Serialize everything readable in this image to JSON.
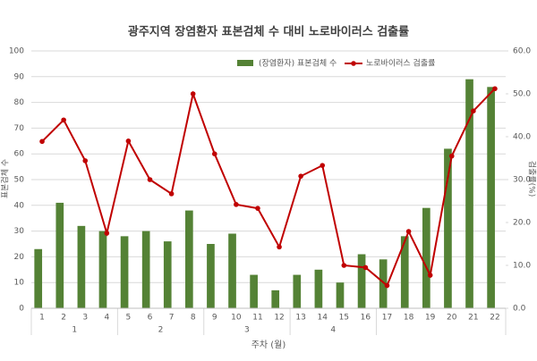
{
  "chart_data": {
    "type": "bar_line",
    "title": "광주지역 장염환자 표본검체 수 대비 노로바이러스 검출률",
    "x_label": "주차 (월)",
    "y_label": "표본검체 수",
    "y2_label": "검출률(%)",
    "categories": [
      "1",
      "2",
      "3",
      "4",
      "5",
      "6",
      "7",
      "8",
      "9",
      "10",
      "11",
      "12",
      "13",
      "14",
      "15",
      "16",
      "17",
      "18",
      "19",
      "20",
      "21",
      "22"
    ],
    "groups": [
      {
        "label": "1",
        "count": 4
      },
      {
        "label": "2",
        "count": 4
      },
      {
        "label": "3",
        "count": 4
      },
      {
        "label": "4",
        "count": 4
      },
      {
        "label": null,
        "count": 6
      }
    ],
    "series": [
      {
        "name": "(장염환자) 표본검체 수",
        "color": "#548235",
        "kind": "bar",
        "values": [
          23,
          41,
          32,
          30,
          28,
          30,
          26,
          38,
          25,
          29,
          13,
          7,
          13,
          15,
          10,
          21,
          19,
          28,
          39,
          62,
          89,
          86
        ]
      },
      {
        "name": "노로바이러스 검출률",
        "color": "#c00000",
        "kind": "line",
        "axis": "y2",
        "values": [
          38.9,
          43.9,
          34.4,
          17.5,
          39,
          30,
          26.7,
          50,
          36,
          24.2,
          23.3,
          14.3,
          30.8,
          33.3,
          10,
          9.5,
          5.3,
          17.9,
          7.7,
          35.5,
          46,
          51.2
        ]
      }
    ],
    "ylim": [
      0,
      100
    ],
    "yticks": [
      0,
      10,
      20,
      30,
      40,
      50,
      60,
      70,
      80,
      90,
      100
    ],
    "y2lim": [
      0,
      60
    ],
    "y2ticks": [
      {
        "value": 0,
        "label": "0.0"
      },
      {
        "value": 10,
        "label": "10.0"
      },
      {
        "value": 20,
        "label": "20.0"
      },
      {
        "value": 30,
        "label": "30.0"
      },
      {
        "value": 40,
        "label": "40.0"
      },
      {
        "value": 50,
        "label": "50.0"
      },
      {
        "value": 60,
        "label": "60.0"
      }
    ],
    "grid": true,
    "legend": "top"
  }
}
